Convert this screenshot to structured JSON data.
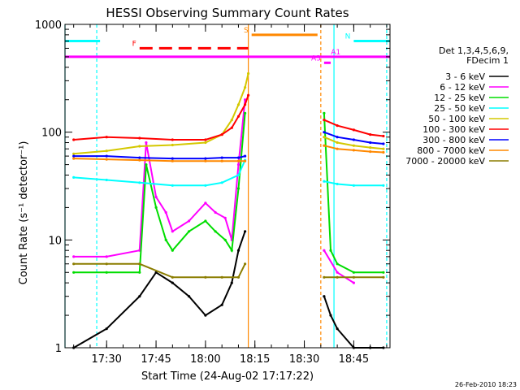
{
  "chart_data": {
    "type": "line",
    "title": "HESSI Observing Summary Count Rates",
    "xlabel": "Start Time (24-Aug-02 17:17:22)",
    "ylabel": "Count Rate (s⁻¹ detector⁻¹)",
    "yscale": "log",
    "ylim": [
      1,
      1000
    ],
    "xlim": [
      "17:17:22",
      "18:56:00"
    ],
    "x_tick_labels": [
      "17:30",
      "17:45",
      "18:00",
      "18:15",
      "18:30",
      "18:45"
    ],
    "y_tick_labels": [
      "1",
      "10",
      "100",
      "1000"
    ],
    "grid": false,
    "legend_position": "right",
    "legend_header": "Det 1,3,4,5,6,9,\nFDecim 1",
    "timestamp": "26-Feb-2010 18:23",
    "data_gap": [
      "18:13",
      "18:35"
    ],
    "series": [
      {
        "name": "3 - 6 keV",
        "color": "#000000",
        "x": [
          "17:20",
          "17:30",
          "17:40",
          "17:45",
          "17:50",
          "17:55",
          "18:00",
          "18:05",
          "18:08",
          "18:10",
          "18:12",
          "18:36",
          "18:38",
          "18:40",
          "18:45",
          "18:50",
          "18:54"
        ],
        "values": [
          1,
          1.5,
          3,
          5,
          4,
          3,
          2,
          2.5,
          4,
          8,
          12,
          3,
          2,
          1.5,
          1,
          1,
          1
        ]
      },
      {
        "name": "6 - 12 keV",
        "color": "#ff00ff",
        "x": [
          "17:20",
          "17:30",
          "17:40",
          "17:42",
          "17:45",
          "17:48",
          "17:50",
          "17:55",
          "18:00",
          "18:03",
          "18:06",
          "18:08",
          "18:10",
          "18:12",
          "18:36",
          "18:40",
          "18:45"
        ],
        "values": [
          7,
          7,
          8,
          80,
          25,
          18,
          12,
          15,
          22,
          18,
          16,
          10,
          50,
          200,
          8,
          5,
          4
        ]
      },
      {
        "name": "12 - 25 keV",
        "color": "#00dd00",
        "x": [
          "17:20",
          "17:30",
          "17:40",
          "17:42",
          "17:45",
          "17:48",
          "17:50",
          "17:55",
          "18:00",
          "18:03",
          "18:06",
          "18:08",
          "18:10",
          "18:12",
          "18:36",
          "18:38",
          "18:40",
          "18:45",
          "18:54"
        ],
        "values": [
          5,
          5,
          5,
          50,
          20,
          10,
          8,
          12,
          15,
          12,
          10,
          8,
          30,
          150,
          150,
          8,
          6,
          5,
          5
        ]
      },
      {
        "name": "25 - 50 keV",
        "color": "#00ffff",
        "x": [
          "17:20",
          "17:30",
          "17:40",
          "17:50",
          "18:00",
          "18:05",
          "18:10",
          "18:12",
          "18:36",
          "18:40",
          "18:45",
          "18:54"
        ],
        "values": [
          38,
          36,
          34,
          32,
          32,
          34,
          40,
          55,
          35,
          33,
          32,
          32
        ]
      },
      {
        "name": "50 - 100 keV",
        "color": "#d4c800",
        "x": [
          "17:20",
          "17:30",
          "17:40",
          "17:50",
          "18:00",
          "18:05",
          "18:08",
          "18:10",
          "18:12",
          "18:13",
          "18:36",
          "18:40",
          "18:45",
          "18:50",
          "18:54"
        ],
        "values": [
          63,
          67,
          74,
          76,
          80,
          95,
          130,
          180,
          260,
          350,
          90,
          80,
          75,
          72,
          70
        ]
      },
      {
        "name": "100 - 300 keV",
        "color": "#ff0000",
        "x": [
          "17:20",
          "17:30",
          "17:40",
          "17:50",
          "18:00",
          "18:05",
          "18:08",
          "18:10",
          "18:12",
          "18:13",
          "18:36",
          "18:40",
          "18:45",
          "18:50",
          "18:54"
        ],
        "values": [
          85,
          90,
          88,
          85,
          85,
          95,
          110,
          140,
          180,
          220,
          130,
          115,
          105,
          95,
          92
        ]
      },
      {
        "name": "300 - 800 keV",
        "color": "#0000ff",
        "x": [
          "17:20",
          "17:30",
          "17:40",
          "17:50",
          "18:00",
          "18:05",
          "18:10",
          "18:12",
          "18:36",
          "18:40",
          "18:45",
          "18:50",
          "18:54"
        ],
        "values": [
          60,
          60,
          58,
          57,
          57,
          58,
          58,
          60,
          100,
          90,
          85,
          80,
          78
        ]
      },
      {
        "name": "800 - 7000 keV",
        "color": "#ff8800",
        "x": [
          "17:20",
          "17:30",
          "17:40",
          "17:50",
          "18:00",
          "18:05",
          "18:10",
          "18:12",
          "18:36",
          "18:40",
          "18:45",
          "18:50",
          "18:54"
        ],
        "values": [
          57,
          56,
          55,
          54,
          54,
          54,
          54,
          54,
          75,
          70,
          68,
          66,
          65
        ]
      },
      {
        "name": "7000 - 20000 keV",
        "color": "#8b7d00",
        "x": [
          "17:20",
          "17:30",
          "17:40",
          "17:50",
          "18:00",
          "18:05",
          "18:10",
          "18:12",
          "18:36",
          "18:40",
          "18:45",
          "18:54"
        ],
        "values": [
          6,
          6,
          6,
          4.5,
          4.5,
          4.5,
          4.5,
          6,
          4.5,
          4.5,
          4.5,
          4.5
        ]
      }
    ],
    "flags": [
      {
        "label": "N",
        "color": "#00ffff",
        "value": 700,
        "segments": [
          [
            "17:17:22",
            "17:28"
          ],
          [
            "18:45",
            "18:56"
          ]
        ]
      },
      {
        "label": "F",
        "color": "#ff0000",
        "value": 600,
        "dashed": true,
        "segments": [
          [
            "17:40",
            "18:13"
          ]
        ]
      },
      {
        "label": "S",
        "color": "#ff8800",
        "value": 800,
        "segments": [
          [
            "18:14",
            "18:34"
          ]
        ]
      },
      {
        "label": "A1",
        "color": "#ff00ff",
        "value": 500,
        "segments": [
          [
            "17:17:22",
            "18:56"
          ]
        ]
      },
      {
        "label": "A3",
        "color": "#ff00ff",
        "value": 440,
        "segments": [
          [
            "18:36",
            "18:38"
          ]
        ]
      }
    ],
    "markers": [
      {
        "time": "17:17:22",
        "color": "#00ffff",
        "style": "solid"
      },
      {
        "time": "17:27",
        "color": "#00ffff",
        "style": "dashed"
      },
      {
        "time": "18:13",
        "color": "#ff8800",
        "style": "solid"
      },
      {
        "time": "18:35",
        "color": "#ff8800",
        "style": "dashed"
      },
      {
        "time": "18:39",
        "color": "#00ffff",
        "style": "solid"
      },
      {
        "time": "18:55",
        "color": "#00ffff",
        "style": "dashed"
      }
    ]
  }
}
